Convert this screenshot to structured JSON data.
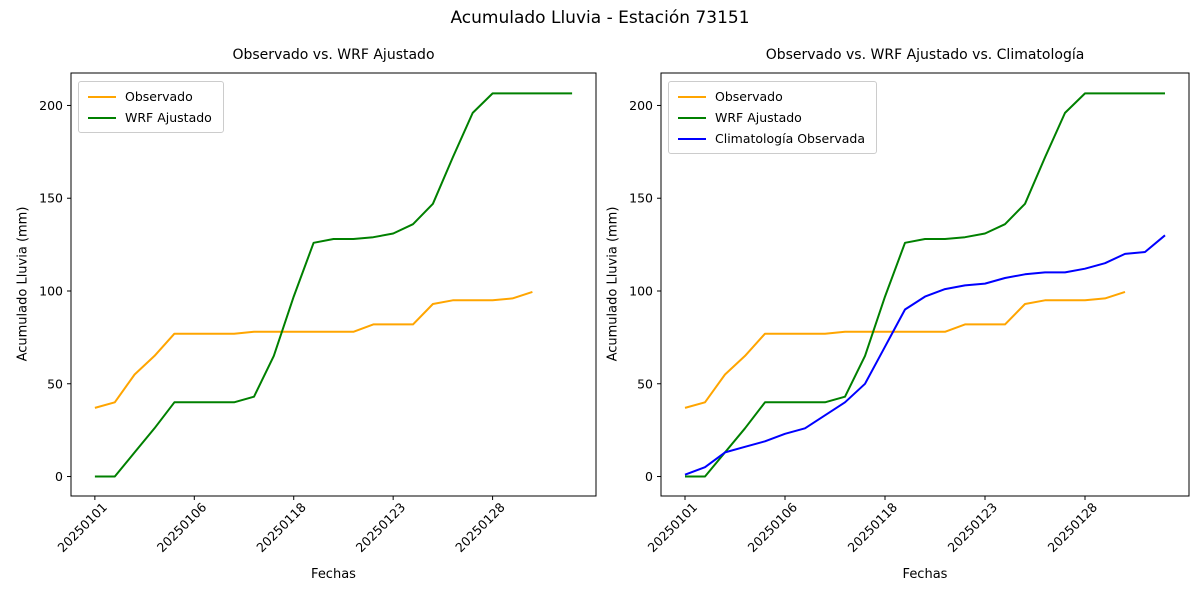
{
  "figure": {
    "title": "Acumulado Lluvia - Estación 73151",
    "background": "#ffffff",
    "axis_color": "#000000"
  },
  "chart_data": [
    {
      "type": "line",
      "title": "Observado vs. WRF Ajustado",
      "xlabel": "Fechas",
      "ylabel": "Acumulado Lluvia (mm)",
      "ylim": [
        -10.5,
        217.5
      ],
      "yticks": [
        0,
        50,
        100,
        150,
        200
      ],
      "xlim": [
        -1.2,
        25.2
      ],
      "x_start_index": 0,
      "x_tick_positions": [
        0,
        5,
        10,
        15,
        20
      ],
      "x_tick_labels": [
        "20250101",
        "20250106",
        "20250118",
        "20250123",
        "20250128"
      ],
      "x_tick_rotation_deg": 45,
      "grid": false,
      "legend_position": "upper-left",
      "series": [
        {
          "name": "Observado",
          "color": "#FFA500",
          "values": [
            37,
            40,
            55,
            65,
            77,
            77,
            77,
            77,
            78,
            78,
            78,
            78,
            78,
            78,
            82,
            82,
            82,
            93,
            95,
            95,
            95,
            96,
            99.5
          ]
        },
        {
          "name": "WRF Ajustado",
          "color": "#008000",
          "values": [
            0,
            0,
            13,
            26,
            40,
            40,
            40,
            40,
            43,
            65,
            97,
            126,
            128,
            128,
            129,
            131,
            136,
            147,
            172,
            196,
            206.5,
            206.5,
            206.5,
            206.5,
            206.5
          ]
        }
      ]
    },
    {
      "type": "line",
      "title": "Observado vs. WRF Ajustado vs. Climatología",
      "xlabel": "Fechas",
      "ylabel": "Acumulado Lluvia (mm)",
      "ylim": [
        -10.5,
        217.5
      ],
      "yticks": [
        0,
        50,
        100,
        150,
        200
      ],
      "xlim": [
        -1.2,
        25.2
      ],
      "x_start_index": 0,
      "x_tick_positions": [
        0,
        5,
        10,
        15,
        20
      ],
      "x_tick_labels": [
        "20250101",
        "20250106",
        "20250118",
        "20250123",
        "20250128"
      ],
      "x_tick_rotation_deg": 45,
      "grid": false,
      "legend_position": "upper-left",
      "series": [
        {
          "name": "Observado",
          "color": "#FFA500",
          "values": [
            37,
            40,
            55,
            65,
            77,
            77,
            77,
            77,
            78,
            78,
            78,
            78,
            78,
            78,
            82,
            82,
            82,
            93,
            95,
            95,
            95,
            96,
            99.5
          ]
        },
        {
          "name": "WRF Ajustado",
          "color": "#008000",
          "values": [
            0,
            0,
            13,
            26,
            40,
            40,
            40,
            40,
            43,
            65,
            97,
            126,
            128,
            128,
            129,
            131,
            136,
            147,
            172,
            196,
            206.5,
            206.5,
            206.5,
            206.5,
            206.5
          ]
        },
        {
          "name": "Climatología Observada",
          "color": "#0000FF",
          "values": [
            1,
            5,
            13,
            16,
            19,
            23,
            26,
            33,
            40,
            50,
            70,
            90,
            97,
            101,
            103,
            104,
            107,
            109,
            110,
            110,
            112,
            115,
            120,
            121,
            130
          ]
        }
      ]
    }
  ]
}
